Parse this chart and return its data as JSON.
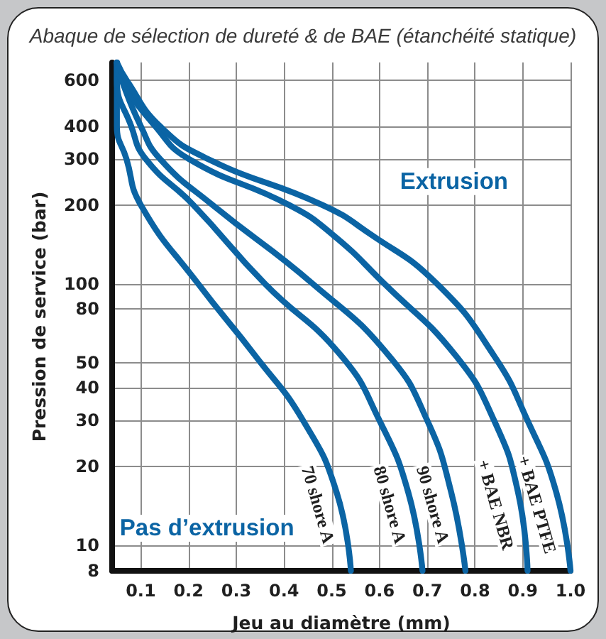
{
  "chart_data": {
    "type": "line",
    "title": "Abaque de sélection de dureté & de BAE (étanchéité statique)",
    "xlabel": "Jeu au diamètre (mm)",
    "ylabel": "Pression de service (bar)",
    "annotations": [
      "Extrusion",
      "Pas d’extrusion"
    ],
    "series": [
      {
        "name": "70 shore A",
        "color": "#0b64a4",
        "x": [
          0.05,
          0.05,
          0.07,
          0.1,
          0.22,
          0.34,
          0.44,
          0.51,
          0.54
        ],
        "values": [
          700,
          400,
          300,
          200,
          100,
          53,
          30,
          16,
          8
        ]
      },
      {
        "name": "80 shore A",
        "color": "#0b64a4",
        "x": [
          0.05,
          0.05,
          0.08,
          0.11,
          0.21,
          0.36,
          0.52,
          0.6,
          0.66,
          0.69
        ],
        "values": [
          700,
          600,
          400,
          300,
          200,
          100,
          53,
          30,
          16,
          8
        ]
      },
      {
        "name": "90 shore A",
        "color": "#0b64a4",
        "x": [
          0.05,
          0.06,
          0.1,
          0.14,
          0.25,
          0.46,
          0.62,
          0.7,
          0.75,
          0.78
        ],
        "values": [
          700,
          600,
          400,
          300,
          200,
          100,
          53,
          30,
          16,
          8
        ]
      },
      {
        "name": "+ BAE NBR",
        "color": "#0b64a4",
        "x": [
          0.05,
          0.06,
          0.13,
          0.2,
          0.41,
          0.5,
          0.61,
          0.76,
          0.84,
          0.89,
          0.91
        ],
        "values": [
          700,
          600,
          400,
          300,
          200,
          155,
          100,
          53,
          30,
          16,
          8
        ]
      },
      {
        "name": "+ BAE PTFE",
        "color": "#0b64a4",
        "x": [
          0.05,
          0.07,
          0.14,
          0.24,
          0.48,
          0.58,
          0.72,
          0.84,
          0.91,
          0.97,
          1.0
        ],
        "values": [
          700,
          600,
          400,
          300,
          200,
          155,
          100,
          53,
          30,
          16,
          8
        ]
      }
    ],
    "xlim": [
      0.04,
      1.0
    ],
    "xticks": [
      0.1,
      0.2,
      0.3,
      0.4,
      0.5,
      0.6,
      0.7,
      0.8,
      0.9,
      {
        "value": 1.0,
        "label": "1.0"
      }
    ],
    "ylim": [
      8,
      700
    ],
    "yticks": [
      8,
      10,
      20,
      30,
      40,
      50,
      80,
      100,
      200,
      300,
      400,
      600
    ],
    "log": "y",
    "grid": true,
    "line_style": "solid"
  }
}
